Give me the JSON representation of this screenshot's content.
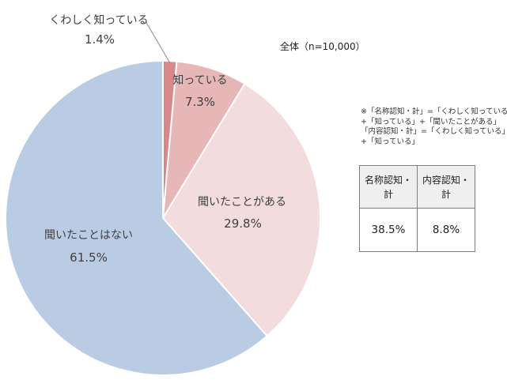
{
  "chart_data": {
    "type": "pie",
    "title": "",
    "slices": [
      {
        "label": "くわしく知っている",
        "value": 1.4,
        "display": "1.4%",
        "color": "#d8878a"
      },
      {
        "label": "知っている",
        "value": 7.3,
        "display": "7.3%",
        "color": "#e7b7b8"
      },
      {
        "label": "聞いたことがある",
        "value": 29.8,
        "display": "29.8%",
        "color": "#f2dcdd"
      },
      {
        "label": "聞いたことはない",
        "value": 61.5,
        "display": "61.5%",
        "color": "#b9cce4"
      }
    ]
  },
  "sample_label": "全体（n=10,000）",
  "notes": [
    "※「名称認知・計」=「くわしく知っている」",
    "+「知っている」+「聞いたことがある」",
    "「内容認知・計」=「くわしく知っている」",
    "+「知っている」"
  ],
  "summary_table": {
    "headers": [
      "名称認知・計",
      "内容認知・計"
    ],
    "values": [
      "38.5%",
      "8.8%"
    ]
  }
}
